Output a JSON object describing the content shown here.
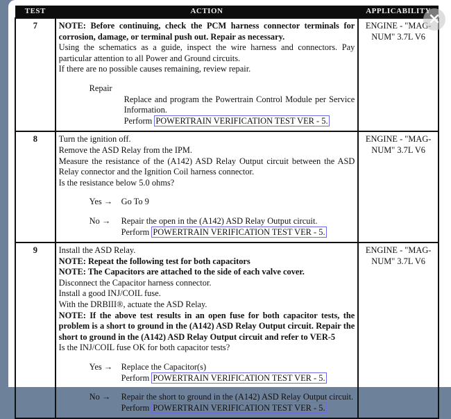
{
  "headers": {
    "test": "TEST",
    "action": "ACTION",
    "applicability": "APPLICABILITY"
  },
  "rows": [
    {
      "num": "7",
      "applicability": "ENGINE - \"MAG-NUM\" 3.7L V6",
      "note": "NOTE: Before continuing, check the PCM harness connector terminals for corrosion, damage, or terminal push out. Repair as necessary.",
      "lines": [
        "Using the schematics as a guide, inspect the wire harness and connectors. Pay particular attention to all Power and Ground circuits.",
        "If there are no possible causes remaining, review repair."
      ],
      "responses": [
        {
          "key": "Repair",
          "text": "Replace and program the Powertrain Control Module per Service Information.",
          "perform": "Perform",
          "link": "POWERTRAIN VERIFICATION TEST VER - 5."
        }
      ]
    },
    {
      "num": "8",
      "applicability": "ENGINE - \"MAG-NUM\" 3.7L V6",
      "lines": [
        "Turn the ignition off.",
        "Remove the ASD Relay from the IPM.",
        "Measure the resistance of the (A142) ASD Relay Output circuit between the ASD Relay connector and the Ignition Coil harness connector.",
        "Is the resistance below 5.0 ohms?"
      ],
      "responses": [
        {
          "key": "Yes",
          "arrow": "→",
          "text": "Go To  9"
        },
        {
          "key": "No",
          "arrow": "→",
          "text": "Repair the open in the (A142) ASD Relay Output circuit.",
          "perform": "Perform",
          "link": "POWERTRAIN VERIFICATION TEST VER - 5."
        }
      ]
    },
    {
      "num": "9",
      "applicability": "ENGINE - \"MAG-NUM\" 3.7L V6",
      "l1": "Install the ASD Relay.",
      "n1": "NOTE: Repeat the following test for both capacitors",
      "n2": "NOTE: The Capacitors are attached to the side of each valve cover.",
      "l2": "Disconnect the Capacitor harness connector.",
      "l3": "Install a good INJ/COIL fuse.",
      "l4": "With the DRBIII®, actuate the ASD Relay.",
      "n3": "NOTE: If the above test results in an open fuse for both capacitor tests, the problem is a short to ground in the (A142) ASD Relay Output circuit. Repair the short to ground in the (A142) ASD Relay Output circuit and refer to VER-5",
      "l5": "Is the INJ/COIL fuse OK for both capacitor tests?",
      "responses": [
        {
          "key": "Yes",
          "arrow": "→",
          "text": "Replace the Capacitor(s)",
          "perform": "Perform",
          "link": "POWERTRAIN VERIFICATION TEST VER - 5."
        },
        {
          "key": "No",
          "arrow": "→",
          "text": "Repair the short to ground in the (A142) ASD Relay Output circuit.",
          "perform": "Perform",
          "link": "POWERTRAIN VERIFICATION TEST VER - 5."
        }
      ]
    }
  ],
  "close_icon": "×"
}
